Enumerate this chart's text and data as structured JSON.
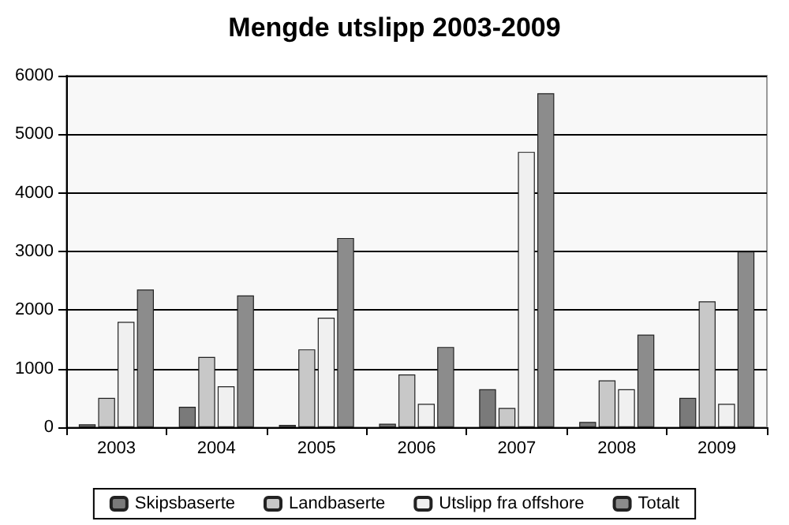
{
  "chart_data": {
    "type": "bar",
    "title": "Mengde utslipp 2003-2009",
    "categories": [
      "2003",
      "2004",
      "2005",
      "2006",
      "2007",
      "2008",
      "2009"
    ],
    "series": [
      {
        "name": "Skipsbaserte",
        "color": "#7a7a7a",
        "values": [
          50,
          350,
          40,
          60,
          650,
          90,
          500
        ]
      },
      {
        "name": "Landbaserte",
        "color": "#c8c8c8",
        "values": [
          500,
          1200,
          1330,
          900,
          330,
          800,
          2150
        ]
      },
      {
        "name": "Utslipp fra offshore",
        "color": "#f0f0f0",
        "values": [
          1800,
          700,
          1870,
          400,
          4700,
          650,
          400
        ]
      },
      {
        "name": "Totalt",
        "color": "#8c8c8c",
        "values": [
          2350,
          2250,
          3230,
          1370,
          5700,
          1580,
          3000
        ]
      }
    ],
    "ylim": [
      0,
      6000
    ],
    "yticks": [
      0,
      1000,
      2000,
      3000,
      4000,
      5000,
      6000
    ],
    "grid": "y",
    "legend": "bottom"
  }
}
